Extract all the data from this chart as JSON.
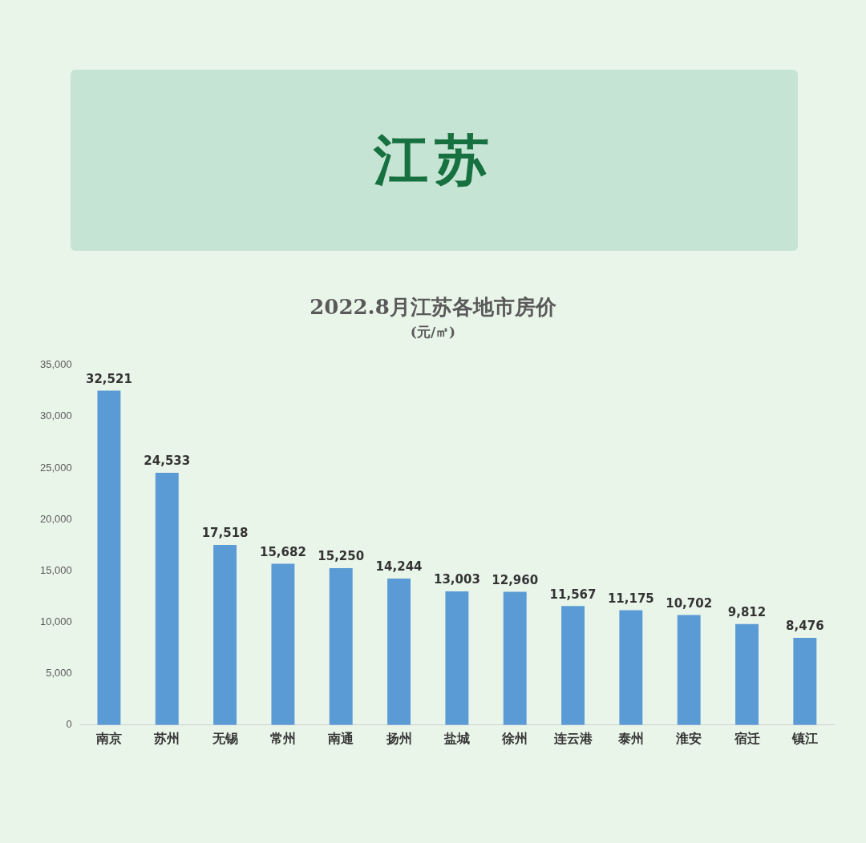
{
  "chart_data": {
    "type": "bar",
    "title": "2022.8月江苏各地市房价",
    "subtitle": "(元/㎡)",
    "annotations": [
      "江苏"
    ],
    "categories": [
      "南京",
      "苏州",
      "无锡",
      "常州",
      "南通",
      "扬州",
      "盐城",
      "徐州",
      "连云港",
      "泰州",
      "淮安",
      "宿迁",
      "镇江"
    ],
    "values": [
      32521,
      24533,
      17518,
      15682,
      15250,
      14244,
      13003,
      12960,
      11567,
      11175,
      10702,
      9812,
      8476
    ],
    "color": "#5b9bd5",
    "ylim": [
      0,
      35000
    ],
    "yticks": [
      {
        "value": 0,
        "label": "0"
      },
      {
        "value": 5000,
        "label": "5,000"
      },
      {
        "value": 10000,
        "label": "10,000"
      },
      {
        "value": 15000,
        "label": "15,000"
      },
      {
        "value": 20000,
        "label": "20,000"
      },
      {
        "value": 25000,
        "label": "25,000"
      },
      {
        "value": 30000,
        "label": "30,000"
      },
      {
        "value": 35000,
        "label": "35,000"
      }
    ],
    "value_labels": [
      "32,521",
      "24,533",
      "17,518",
      "15,682",
      "15,250",
      "14,244",
      "13,003",
      "12,960",
      "11,567",
      "11,175",
      "10,702",
      "9,812",
      "8,476"
    ]
  }
}
